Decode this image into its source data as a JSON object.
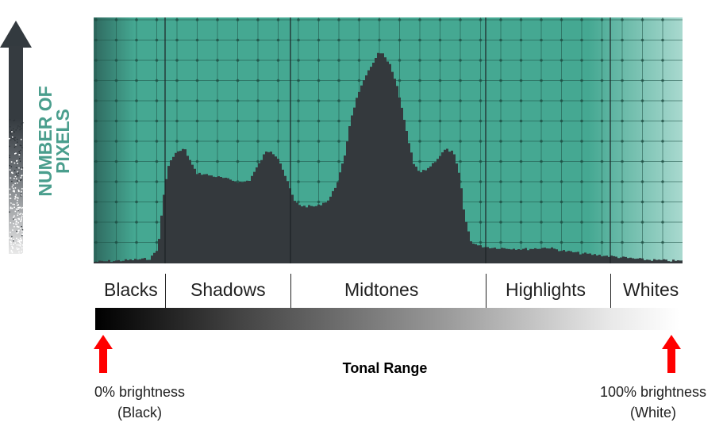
{
  "y_axis": {
    "label_line1": "NUMBER OF",
    "label_line2": "PIXELS"
  },
  "zones": [
    {
      "label": "Blacks"
    },
    {
      "label": "Shadows"
    },
    {
      "label": "Midtones"
    },
    {
      "label": "Highlights"
    },
    {
      "label": "Whites"
    }
  ],
  "x_axis": {
    "title": "Tonal Range"
  },
  "endpoints": {
    "left": {
      "line1": "0% brightness",
      "line2": "(Black)"
    },
    "right": {
      "line1": "100% brightness",
      "line2": "(White)"
    }
  },
  "colors": {
    "panel_teal": "#45a892",
    "panel_dark": "#2f6a60",
    "panel_light": "#a9d9cf",
    "histogram_fill": "#34393d",
    "y_label": "#4a9e8d",
    "arrow": "#333a3f",
    "marker_arrow": "#ff0000"
  }
}
